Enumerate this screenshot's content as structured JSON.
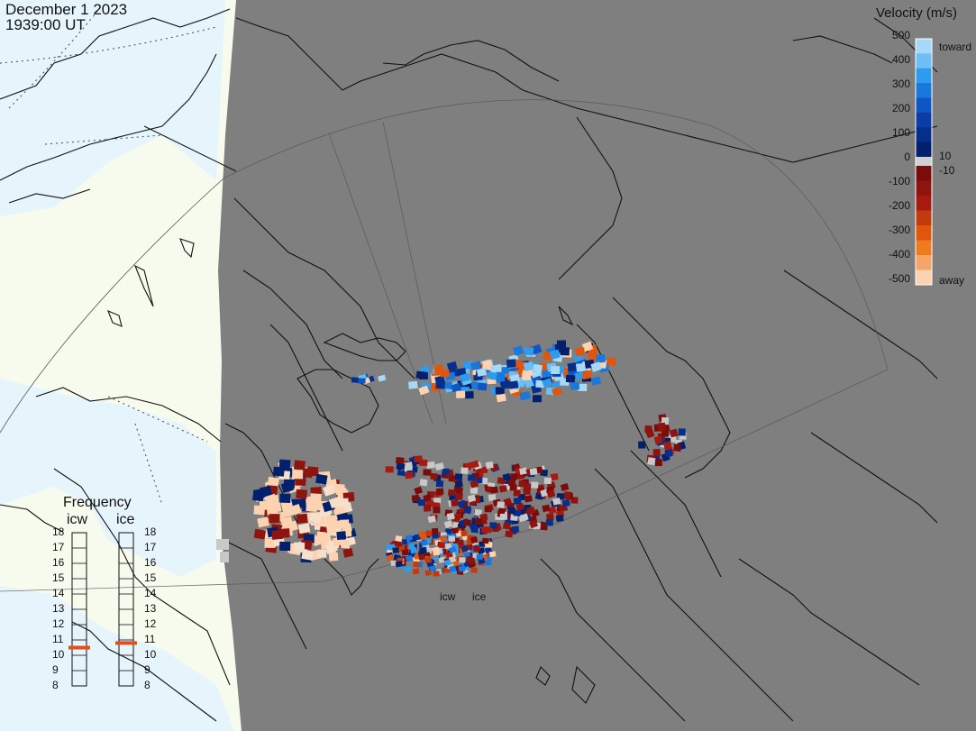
{
  "header": {
    "date": "December 1 2023",
    "time": "1939:00 UT"
  },
  "velocity_legend": {
    "title": "Velocity (m/s)",
    "ticks": [
      "500",
      "400",
      "300",
      "200",
      "100",
      "0",
      "-100",
      "-200",
      "-300",
      "-400",
      "-500"
    ],
    "toward_label": "toward",
    "away_label": "away",
    "near_zero_pos": "10",
    "near_zero_neg": "-10",
    "toward_colors": [
      "#a6d8f7",
      "#6cbef4",
      "#2e9bec",
      "#1a78db",
      "#0e56c4",
      "#0a3ea6",
      "#072e8a",
      "#03206c"
    ],
    "away_colors": [
      "#7a0c0c",
      "#8e1410",
      "#a61a10",
      "#c23a10",
      "#e2560c",
      "#f07a1e",
      "#f6a46a",
      "#fcd2b0"
    ]
  },
  "frequency": {
    "title": "Frequency",
    "scales": [
      {
        "name": "icw",
        "ticks": [
          "18",
          "17",
          "16",
          "15",
          "14",
          "13",
          "12",
          "11",
          "10",
          "9",
          "8"
        ],
        "value_mhz": 10.5
      },
      {
        "name": "ice",
        "ticks": [
          "18",
          "17",
          "16",
          "15",
          "14",
          "13",
          "12",
          "11",
          "10",
          "9",
          "8"
        ],
        "value_mhz": 10.8
      }
    ],
    "marker_color": "#e0501a"
  },
  "radars": [
    {
      "name": "icw"
    },
    {
      "name": "ice"
    }
  ],
  "colors": {
    "night_shade": "#7f7f7f",
    "land_day": "#f7fbee",
    "ocean_day": "#e6f4fc",
    "ground_scatter": "#c8c8c8"
  }
}
